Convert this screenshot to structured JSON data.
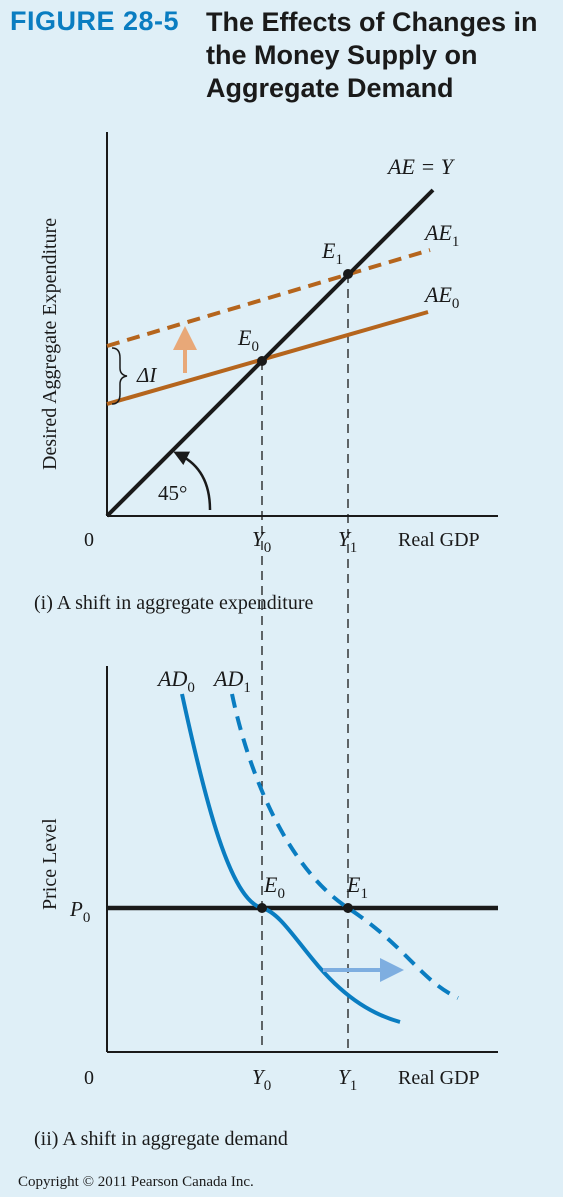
{
  "figure": {
    "label": "FIGURE 28-5",
    "title": "The Effects of Changes in the Money Supply on Aggregate Demand"
  },
  "panel_top": {
    "y_axis_label": "Desired Aggregate Expenditure",
    "origin": "0",
    "x_axis_label": "Real GDP",
    "caption": "(i) A shift in aggregate expenditure",
    "line_45": "AE = Y",
    "ae1": {
      "base": "AE",
      "sub": "1"
    },
    "ae0": {
      "base": "AE",
      "sub": "0"
    },
    "e0": {
      "base": "E",
      "sub": "0"
    },
    "e1": {
      "base": "E",
      "sub": "1"
    },
    "y0": {
      "base": "Y",
      "sub": "0"
    },
    "y1": {
      "base": "Y",
      "sub": "1"
    },
    "delta_i": "ΔI",
    "angle": "45°"
  },
  "panel_bottom": {
    "y_axis_label": "Price Level",
    "origin": "0",
    "x_axis_label": "Real GDP",
    "caption": "(ii) A shift in aggregate demand",
    "p0": {
      "base": "P",
      "sub": "0"
    },
    "ad0": {
      "base": "AD",
      "sub": "0"
    },
    "ad1": {
      "base": "AD",
      "sub": "1"
    },
    "e0": {
      "base": "E",
      "sub": "0"
    },
    "e1": {
      "base": "E",
      "sub": "1"
    },
    "y0": {
      "base": "Y",
      "sub": "0"
    },
    "y1": {
      "base": "Y",
      "sub": "1"
    }
  },
  "colors": {
    "background": "#dfeff7",
    "axis": "#1a1a1a",
    "ae_curves": "#b5651d",
    "shift_arrow_top": "#e8a878",
    "ad_curves": "#0a7dc1",
    "shift_arrow_bottom": "#7eaee0"
  },
  "copyright": "Copyright © 2011 Pearson Canada Inc."
}
